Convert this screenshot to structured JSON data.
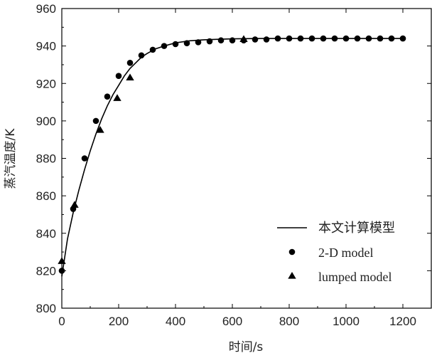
{
  "chart_data": {
    "type": "line",
    "xlabel": "时间/s",
    "ylabel": "蒸汽温度/K",
    "xlim": [
      0,
      1300
    ],
    "ylim": [
      800,
      960
    ],
    "xticks": [
      0,
      200,
      400,
      600,
      800,
      1000,
      1200
    ],
    "yticks": [
      800,
      820,
      840,
      860,
      880,
      900,
      920,
      940,
      960
    ],
    "xtick_labels": [
      "0",
      "200",
      "400",
      "600",
      "800",
      "1000",
      "1200"
    ],
    "ytick_labels": [
      "800",
      "820",
      "840",
      "860",
      "880",
      "900",
      "920",
      "940",
      "960"
    ],
    "grid": false,
    "legend_position": "bottom-right",
    "series": [
      {
        "name": "本文计算模型",
        "style": "line",
        "color": "#000000",
        "x": [
          0,
          20,
          40,
          60,
          80,
          100,
          120,
          140,
          160,
          180,
          200,
          220,
          240,
          260,
          280,
          300,
          330,
          360,
          400,
          450,
          500,
          550,
          600,
          700,
          800,
          1000,
          1200
        ],
        "y": [
          817,
          837,
          851,
          863,
          874,
          884,
          893,
          901,
          908,
          914,
          919,
          924,
          928,
          931,
          934,
          936,
          938.5,
          940,
          941.7,
          942.8,
          943.3,
          943.6,
          943.8,
          944,
          944,
          944,
          944
        ]
      },
      {
        "name": "2-D model",
        "style": "circle",
        "color": "#000000",
        "x": [
          0,
          40,
          80,
          120,
          160,
          200,
          240,
          280,
          320,
          360,
          400,
          440,
          480,
          520,
          560,
          600,
          640,
          680,
          720,
          760,
          800,
          840,
          880,
          920,
          960,
          1000,
          1040,
          1080,
          1120,
          1160,
          1200
        ],
        "y": [
          820,
          853,
          880,
          900,
          913,
          924,
          931,
          935,
          938,
          940,
          941,
          941.5,
          942,
          942.5,
          943,
          943,
          943,
          943.5,
          943.5,
          944,
          944,
          944,
          944,
          944,
          944,
          944,
          944,
          944,
          944,
          944,
          944
        ]
      },
      {
        "name": "lumped model",
        "style": "triangle",
        "color": "#000000",
        "x": [
          0,
          45,
          135,
          195,
          240,
          640
        ],
        "y": [
          825,
          855,
          895,
          912,
          923,
          943.5
        ]
      }
    ]
  }
}
